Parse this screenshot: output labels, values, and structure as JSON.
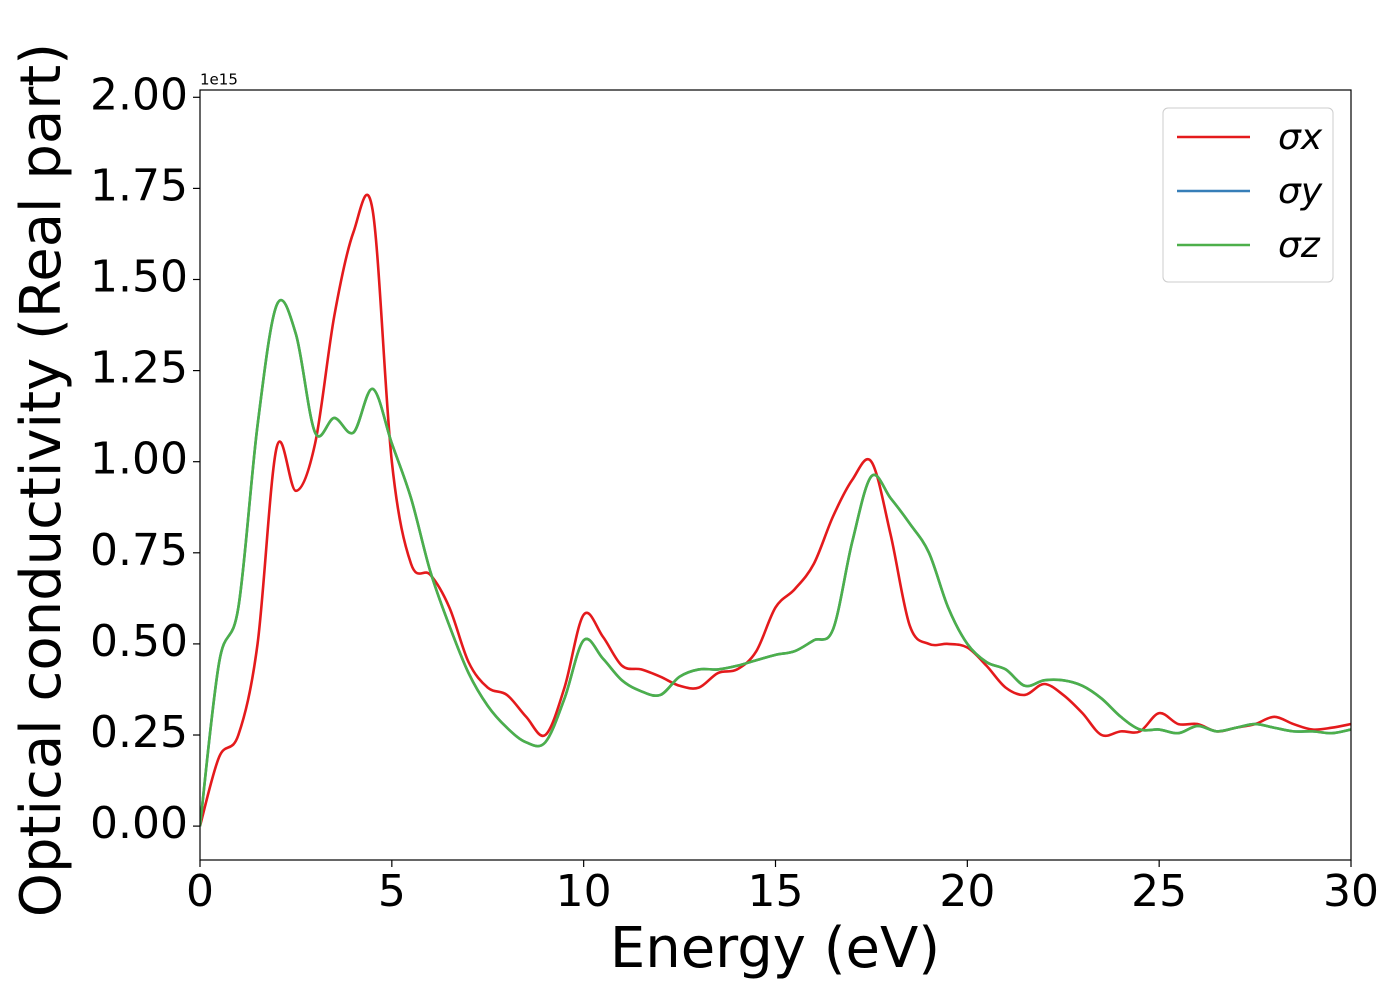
{
  "chart_data": {
    "type": "line",
    "xlabel": "Energy (eV)",
    "ylabel": "Optical conductivity (Real part)",
    "offset_label": "1e15",
    "x": [
      0,
      0.5,
      1,
      1.5,
      2,
      2.5,
      3,
      3.5,
      4,
      4.5,
      5,
      5.5,
      6,
      6.5,
      7,
      7.5,
      8,
      8.5,
      9,
      9.5,
      10,
      10.5,
      11,
      11.5,
      12,
      12.5,
      13,
      13.5,
      14,
      14.5,
      15,
      15.5,
      16,
      16.5,
      17,
      17.5,
      18,
      18.5,
      19,
      19.5,
      20,
      20.5,
      21,
      21.5,
      22,
      22.5,
      23,
      23.5,
      24,
      24.5,
      25,
      25.5,
      26,
      26.5,
      27,
      27.5,
      28,
      28.5,
      29,
      29.5,
      30
    ],
    "series": [
      {
        "name": "σx",
        "color": "#e41a1c",
        "values": [
          0,
          0.19,
          0.25,
          0.5,
          1.04,
          0.92,
          1.05,
          1.4,
          1.63,
          1.69,
          1.0,
          0.72,
          0.69,
          0.6,
          0.45,
          0.38,
          0.36,
          0.3,
          0.25,
          0.38,
          0.58,
          0.52,
          0.44,
          0.43,
          0.41,
          0.385,
          0.38,
          0.42,
          0.43,
          0.48,
          0.6,
          0.65,
          0.72,
          0.85,
          0.95,
          1.0,
          0.8,
          0.55,
          0.5,
          0.5,
          0.49,
          0.44,
          0.38,
          0.36,
          0.39,
          0.36,
          0.31,
          0.25,
          0.26,
          0.26,
          0.31,
          0.28,
          0.28,
          0.26,
          0.27,
          0.28,
          0.3,
          0.28,
          0.265,
          0.27,
          0.28
        ]
      },
      {
        "name": "σy",
        "color": "#377eb8",
        "values": [
          0,
          0.45,
          0.6,
          1.1,
          1.43,
          1.35,
          1.08,
          1.12,
          1.08,
          1.2,
          1.05,
          0.9,
          0.7,
          0.55,
          0.42,
          0.33,
          0.27,
          0.23,
          0.23,
          0.35,
          0.51,
          0.46,
          0.4,
          0.37,
          0.36,
          0.41,
          0.43,
          0.43,
          0.44,
          0.455,
          0.47,
          0.48,
          0.51,
          0.54,
          0.78,
          0.96,
          0.9,
          0.83,
          0.75,
          0.6,
          0.5,
          0.45,
          0.43,
          0.385,
          0.4,
          0.4,
          0.385,
          0.35,
          0.3,
          0.265,
          0.265,
          0.255,
          0.275,
          0.26,
          0.27,
          0.28,
          0.27,
          0.26,
          0.26,
          0.255,
          0.265
        ]
      },
      {
        "name": "σz",
        "color": "#4daf4a",
        "values": [
          0,
          0.45,
          0.6,
          1.1,
          1.43,
          1.35,
          1.08,
          1.12,
          1.08,
          1.2,
          1.05,
          0.9,
          0.7,
          0.55,
          0.42,
          0.33,
          0.27,
          0.23,
          0.23,
          0.35,
          0.51,
          0.46,
          0.4,
          0.37,
          0.36,
          0.41,
          0.43,
          0.43,
          0.44,
          0.455,
          0.47,
          0.48,
          0.51,
          0.54,
          0.78,
          0.96,
          0.9,
          0.83,
          0.75,
          0.6,
          0.5,
          0.45,
          0.43,
          0.385,
          0.4,
          0.4,
          0.385,
          0.35,
          0.3,
          0.265,
          0.265,
          0.255,
          0.275,
          0.26,
          0.27,
          0.28,
          0.27,
          0.26,
          0.26,
          0.255,
          0.265
        ]
      }
    ],
    "xlim": [
      0,
      30
    ],
    "xticks": [
      0,
      5,
      10,
      15,
      20,
      25,
      30
    ],
    "ylim": [
      -0.093,
      2.02
    ],
    "yticks": [
      {
        "value": 0,
        "label": "0.00"
      },
      {
        "value": 0.25,
        "label": "0.25"
      },
      {
        "value": 0.5,
        "label": "0.50"
      },
      {
        "value": 0.75,
        "label": "0.75"
      },
      {
        "value": 1,
        "label": "1.00"
      },
      {
        "value": 1.25,
        "label": "1.25"
      },
      {
        "value": 1.5,
        "label": "1.50"
      },
      {
        "value": 1.75,
        "label": "1.75"
      },
      {
        "value": 2,
        "label": "2.00"
      }
    ],
    "legend": "upper right",
    "grid": false
  }
}
